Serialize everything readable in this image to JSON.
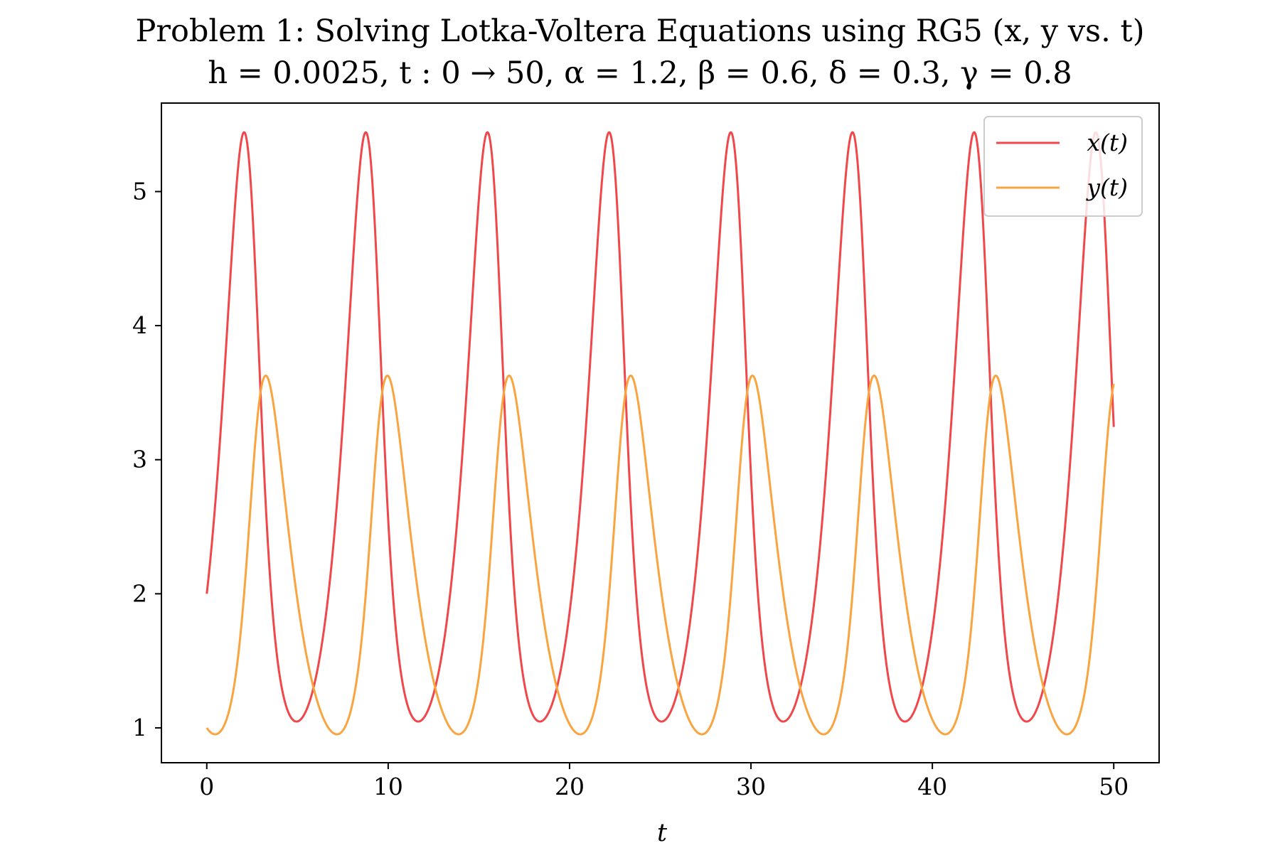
{
  "chart_data": {
    "type": "line",
    "title": "Problem 1: Solving Lotka-Voltera Equations using RG5 (x, y vs. t)",
    "subtitle": "h = 0.0025, t : 0 → 50, α = 1.2, β = 0.6, δ = 0.3, γ = 0.8",
    "xlabel": "t",
    "ylabel": "",
    "xlim": [
      -2.5,
      52.5
    ],
    "ylim": [
      0.74,
      5.66
    ],
    "xticks": [
      0,
      10,
      20,
      30,
      40,
      50
    ],
    "yticks": [
      1,
      2,
      3,
      4,
      5
    ],
    "grid": false,
    "legend_position": "top-right",
    "parameters": {
      "h": 0.0025,
      "t_start": 0,
      "t_end": 50,
      "alpha": 1.2,
      "beta": 0.6,
      "delta": 0.3,
      "gamma": 0.8,
      "x0": 2,
      "y0": 1
    },
    "series": [
      {
        "name": "x(t)",
        "color": "#f0474b",
        "peaks": [
          5.44,
          5.44,
          5.44,
          5.44,
          5.44,
          5.44,
          5.44,
          5.44
        ],
        "troughs": [
          1.05,
          1.05,
          1.05,
          1.05,
          1.05,
          1.05,
          1.05
        ],
        "period": 6.72
      },
      {
        "name": "y(t)",
        "color": "#f9a43f",
        "peaks": [
          3.63,
          3.63,
          3.63,
          3.63,
          3.63,
          3.63,
          3.63,
          3.63
        ],
        "troughs": [
          0.96,
          0.96,
          0.96,
          0.96,
          0.96,
          0.96,
          0.96,
          0.96
        ],
        "period": 6.72
      }
    ]
  }
}
